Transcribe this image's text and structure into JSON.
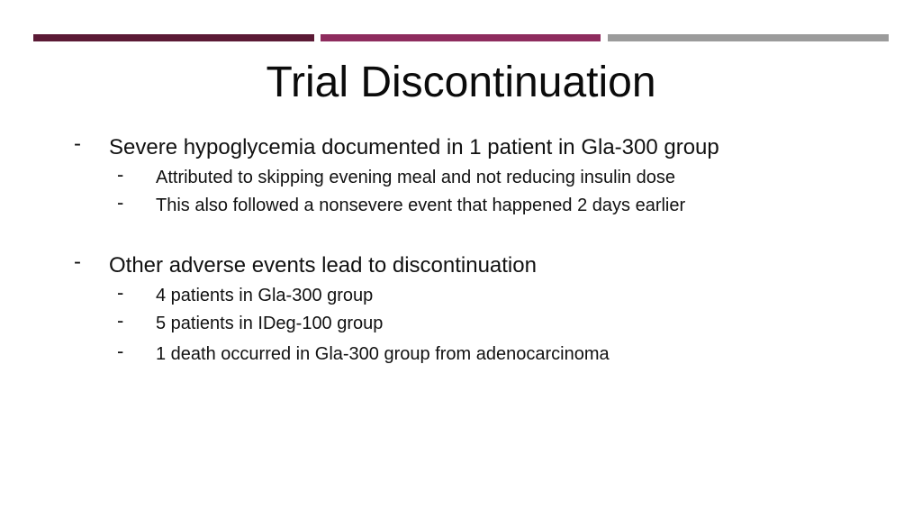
{
  "slide": {
    "title": "Trial Discontinuation",
    "bullet_marker": "-",
    "sections": [
      {
        "heading": "Severe hypoglycemia documented in 1 patient in Gla-300 group",
        "items": [
          "Attributed to skipping evening meal and not reducing insulin dose",
          "This also followed a nonsevere event that happened 2 days earlier"
        ]
      },
      {
        "heading": "Other adverse events lead to discontinuation",
        "items": [
          "4 patients in Gla-300 group",
          "5 patients in IDeg-100 group",
          "1 death occurred in Gla-300 group from adenocarcinoma"
        ]
      }
    ]
  },
  "colors": {
    "accent_bar_left": "#5b1a35",
    "accent_bar_middle": "#8e2c5e",
    "accent_bar_right": "#9b9b9b"
  }
}
